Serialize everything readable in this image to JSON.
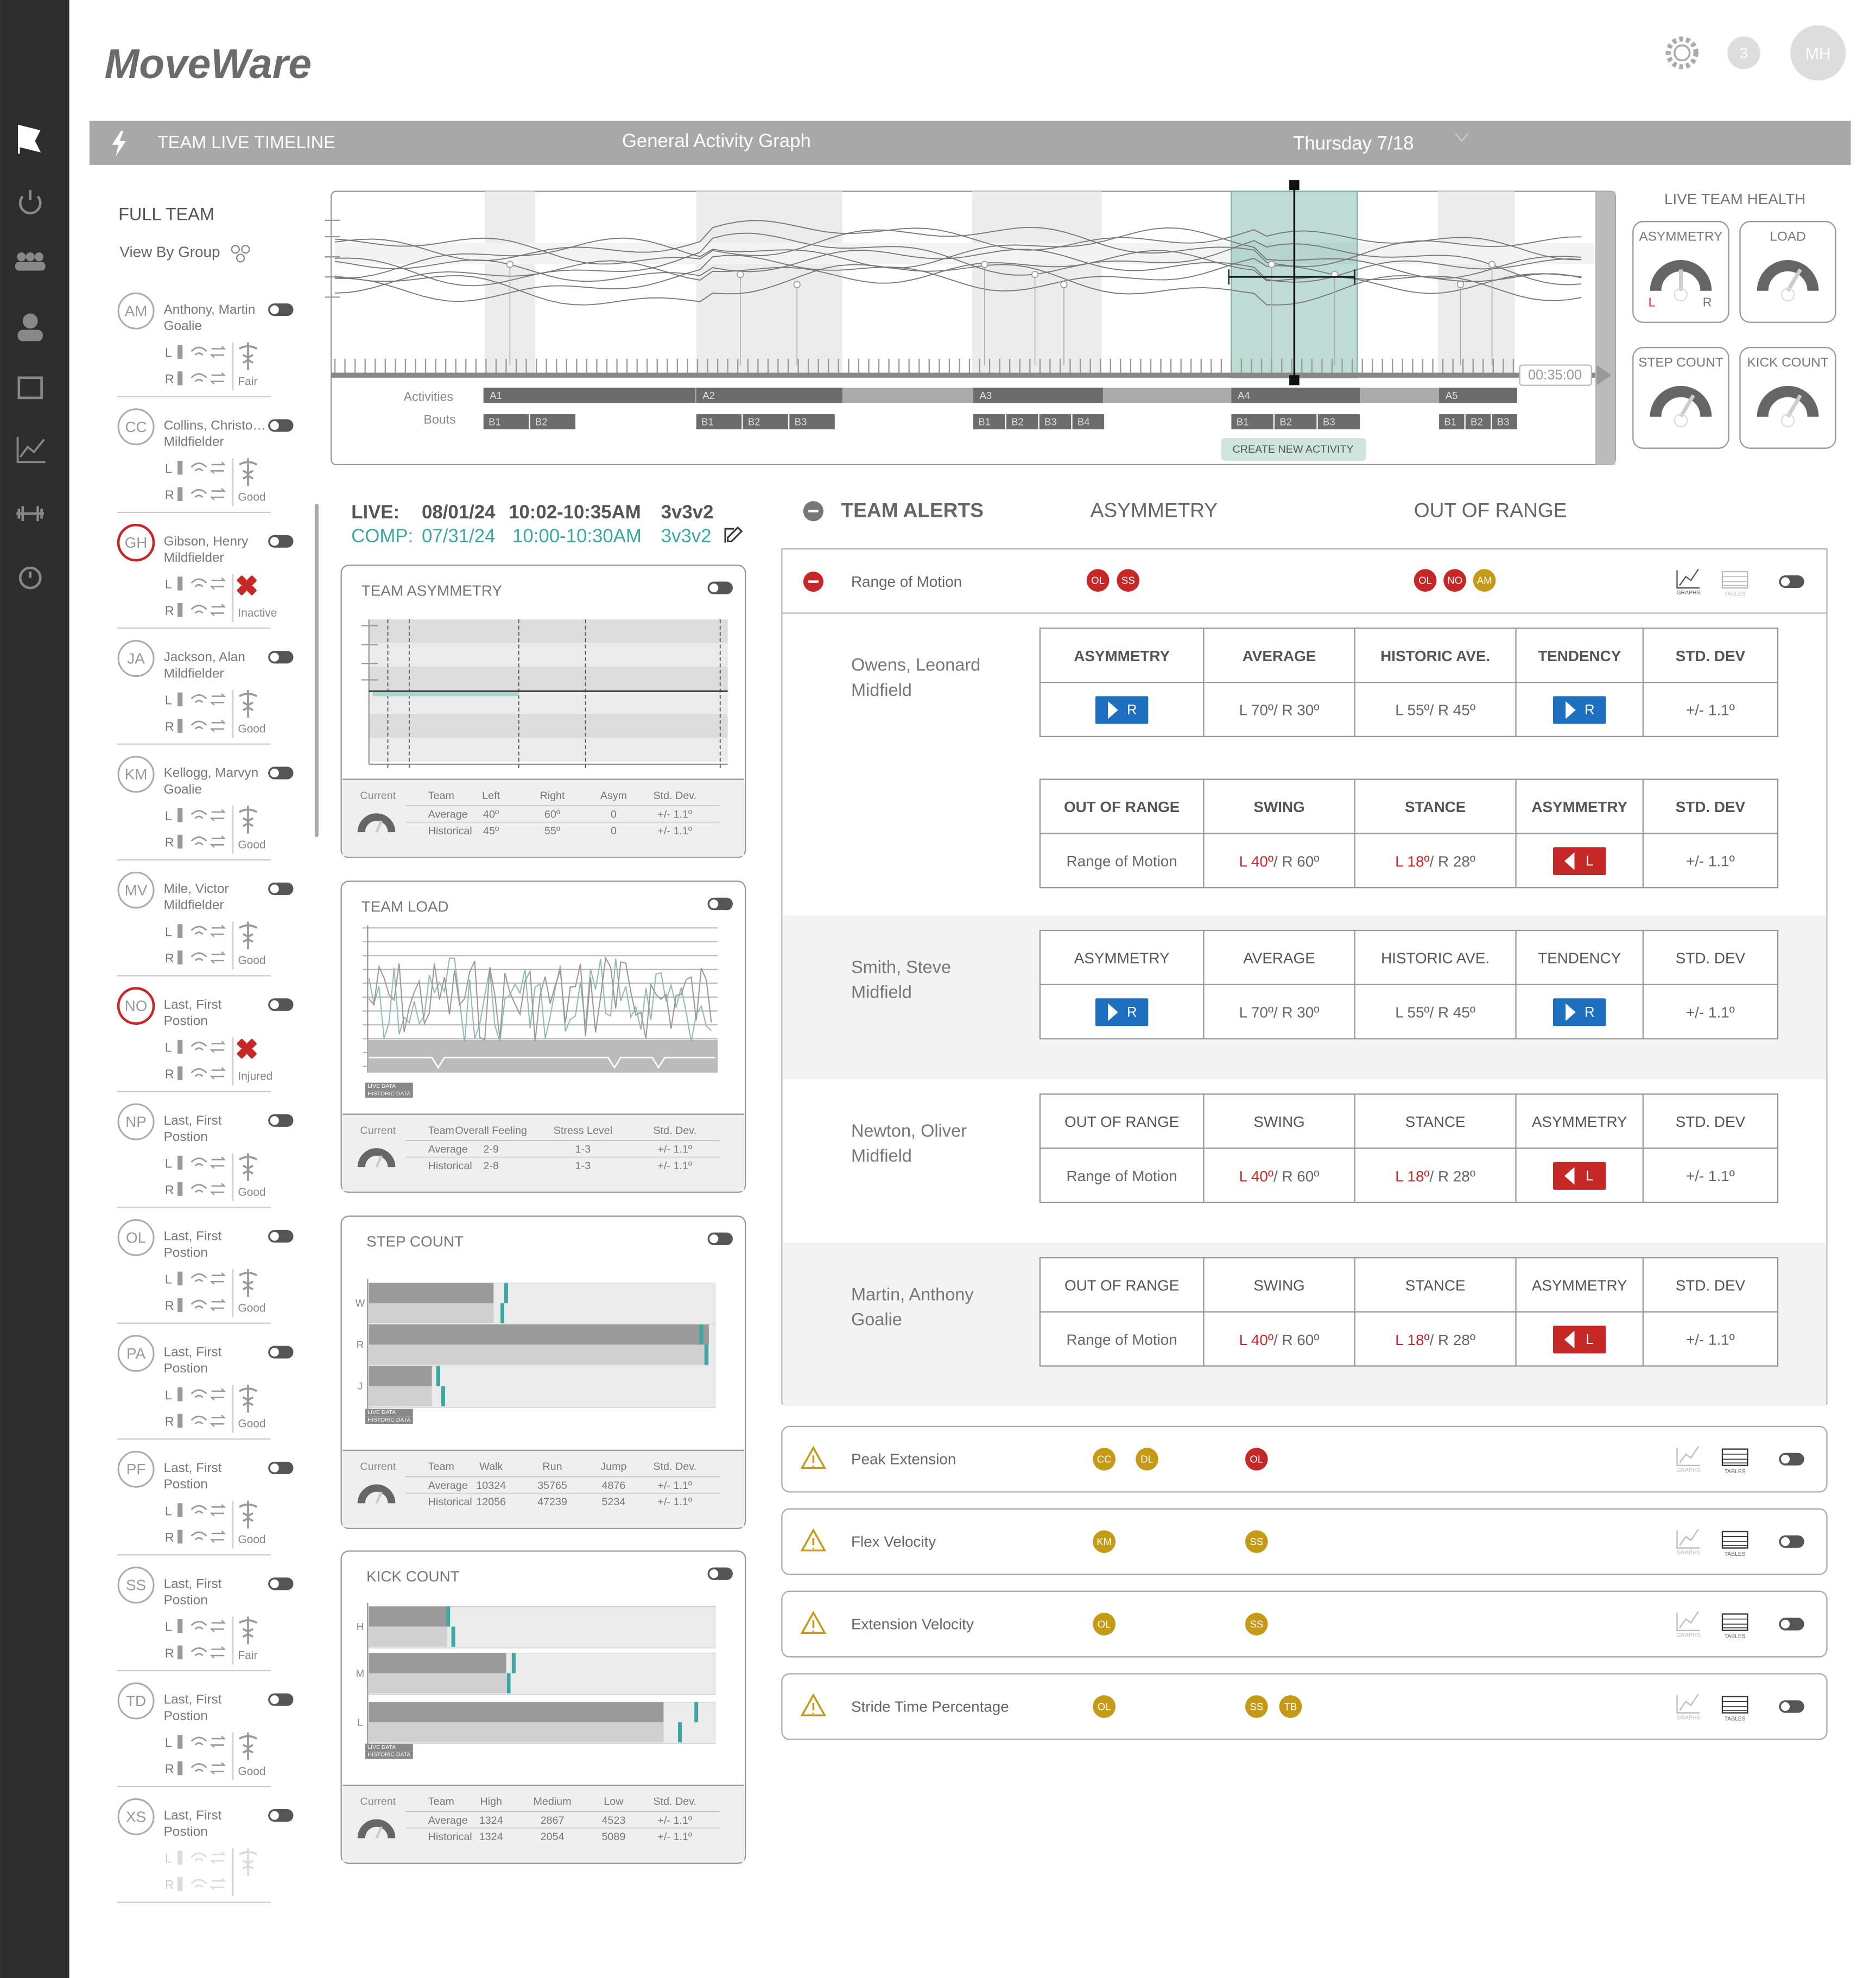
{
  "header": {
    "logo": "MoveWare",
    "notification_count": "3",
    "user_initials": "MH"
  },
  "timeline_bar": {
    "title": "TEAM LIVE TIMELINE",
    "graph": "General Activity Graph",
    "date": "Thursday 7/18"
  },
  "timeline": {
    "elapsed": "00:35:00",
    "activities_label": "Activities",
    "bouts_label": "Bouts",
    "create_button": "CREATE NEW ACTIVITY",
    "activities": [
      {
        "label": "A1",
        "bouts": [
          "B1",
          "B2"
        ]
      },
      {
        "label": "A2",
        "bouts": [
          "B1",
          "B2",
          "B3"
        ]
      },
      {
        "label": "A3",
        "bouts": [
          "B1",
          "B2",
          "B3",
          "B4"
        ]
      },
      {
        "label": "A4",
        "bouts": [
          "B1",
          "B2",
          "B3"
        ]
      },
      {
        "label": "A5",
        "bouts": [
          "B1",
          "B2",
          "B3"
        ]
      }
    ]
  },
  "team_health": {
    "title": "LIVE TEAM HEALTH",
    "left": "L",
    "right": "R",
    "gauges": [
      "ASYMMETRY",
      "LOAD",
      "STEP COUNT",
      "KICK COUNT"
    ]
  },
  "roster": {
    "title": "FULL TEAM",
    "view_by": "View By Group",
    "left": "L",
    "right": "R",
    "players": [
      {
        "initials": "AM",
        "name": "Anthony, Martin",
        "position": "Goalie",
        "status": "Fair"
      },
      {
        "initials": "CC",
        "name": "Collins, Christo…",
        "position": "Mildfielder",
        "status": "Good"
      },
      {
        "initials": "GH",
        "name": "Gibson, Henry",
        "position": "Mildfielder",
        "status": "Inactive",
        "flagged": true
      },
      {
        "initials": "JA",
        "name": "Jackson, Alan",
        "position": "Mildfielder",
        "status": "Good"
      },
      {
        "initials": "KM",
        "name": "Kellogg, Marvyn",
        "position": "Goalie",
        "status": "Good"
      },
      {
        "initials": "MV",
        "name": "Mile, Victor",
        "position": "Mildfielder",
        "status": "Good"
      },
      {
        "initials": "NO",
        "name": "Last, First",
        "position": "Postion",
        "status": "Injured",
        "flagged": true
      },
      {
        "initials": "NP",
        "name": "Last, First",
        "position": "Postion",
        "status": "Good"
      },
      {
        "initials": "OL",
        "name": "Last, First",
        "position": "Postion",
        "status": "Good"
      },
      {
        "initials": "PA",
        "name": "Last, First",
        "position": "Postion",
        "status": "Good"
      },
      {
        "initials": "PF",
        "name": "Last, First",
        "position": "Postion",
        "status": "Good"
      },
      {
        "initials": "SS",
        "name": "Last, First",
        "position": "Postion",
        "status": "Fair"
      },
      {
        "initials": "TD",
        "name": "Last, First",
        "position": "Postion",
        "status": "Good"
      },
      {
        "initials": "XS",
        "name": "Last, First",
        "position": "Postion"
      }
    ]
  },
  "session": {
    "live_label": "LIVE:",
    "live_date": "08/01/24",
    "live_time": "10:02-10:35AM",
    "live_format": "3v3v2",
    "comp_label": "COMP:",
    "comp_date": "07/31/24",
    "comp_time": "10:00-10:30AM",
    "comp_format": "3v3v2"
  },
  "cards": [
    {
      "title": "TEAM ASYMMETRY",
      "current": "Current",
      "columns": [
        "Team",
        "Left",
        "Right",
        "Asym",
        "Std. Dev."
      ],
      "rows": [
        [
          "Average",
          "40º",
          "60º",
          "0",
          "+/- 1.1º"
        ],
        [
          "Historical",
          "45º",
          "55º",
          "0",
          "+/- 1.1º"
        ]
      ]
    },
    {
      "title": "TEAM LOAD",
      "current": "Current",
      "legend": [
        "LIVE DATA",
        "HISTORIC DATA"
      ],
      "columns": [
        "Team",
        "Overall Feeling",
        "Stress Level",
        "Std. Dev."
      ],
      "rows": [
        [
          "Average",
          "2-9",
          "1-3",
          "+/- 1.1º"
        ],
        [
          "Historical",
          "2-8",
          "1-3",
          "+/- 1.1º"
        ]
      ]
    },
    {
      "title": "STEP COUNT",
      "current": "Current",
      "legend": [
        "LIVE DATA",
        "HISTORIC DATA"
      ],
      "axis": [
        "W",
        "R",
        "J"
      ],
      "columns": [
        "Team",
        "Walk",
        "Run",
        "Jump",
        "Std. Dev."
      ],
      "rows": [
        [
          "Average",
          "10324",
          "35765",
          "4876",
          "+/- 1.1º"
        ],
        [
          "Historical",
          "12056",
          "47239",
          "5234",
          "+/- 1.1º"
        ]
      ]
    },
    {
      "title": "KICK COUNT",
      "current": "Current",
      "legend": [
        "LIVE DATA",
        "HISTORIC DATA"
      ],
      "axis": [
        "H",
        "M",
        "L"
      ],
      "columns": [
        "Team",
        "High",
        "Medium",
        "Low",
        "Std. Dev."
      ],
      "rows": [
        [
          "Average",
          "1324",
          "2867",
          "4523",
          "+/- 1.1º"
        ],
        [
          "Historical",
          "1324",
          "2054",
          "5089",
          "+/- 1.1º"
        ]
      ]
    }
  ],
  "alerts": {
    "title": "TEAM ALERTS",
    "asymmetry": "ASYMMETRY",
    "out_of_range": "OUT OF RANGE",
    "graphs": "GRAPHS",
    "tables": "TABLES",
    "groups": [
      {
        "name": "Range of Motion",
        "expanded": true,
        "asymmetry": [
          {
            "label": "OL",
            "color": "#c62828"
          },
          {
            "label": "SS",
            "color": "#c62828"
          }
        ],
        "out_of_range": [
          {
            "label": "OL",
            "color": "#c62828"
          },
          {
            "label": "NO",
            "color": "#c62828"
          },
          {
            "label": "AM",
            "color": "#c49a16"
          }
        ],
        "players": [
          {
            "name": "Owens, Leonard",
            "position": "Midfield",
            "bold_headers": true,
            "tables": [
              {
                "headers": [
                  "ASYMMETRY",
                  "AVERAGE",
                  "HISTORIC AVE.",
                  "TENDENCY",
                  "STD. DEV"
                ],
                "cells": [
                  {
                    "button": "R",
                    "color": "#1e6fc0"
                  },
                  "L 70º/ R 30º",
                  "L 55º/ R 45º",
                  {
                    "button": "R",
                    "color": "#1e6fc0"
                  },
                  "+/- 1.1º"
                ]
              },
              {
                "headers": [
                  "OUT OF RANGE",
                  "SWING",
                  "STANCE",
                  "ASYMMETRY",
                  "STD. DEV"
                ],
                "cells": [
                  "Range of Motion",
                  {
                    "highlight": "L 40º",
                    "rest": "/ R 60º"
                  },
                  {
                    "highlight": "L 18º",
                    "rest": "/ R 28º"
                  },
                  {
                    "button": "L",
                    "color": "#c62828"
                  },
                  "+/- 1.1º"
                ]
              }
            ]
          },
          {
            "name": "Smith, Steve",
            "position": "Midfield",
            "tables": [
              {
                "headers": [
                  "ASYMMETRY",
                  "AVERAGE",
                  "HISTORIC AVE.",
                  "TENDENCY",
                  "STD. DEV"
                ],
                "cells": [
                  {
                    "button": "R",
                    "color": "#1e6fc0"
                  },
                  "L 70º/ R 30º",
                  "L 55º/ R 45º",
                  {
                    "button": "R",
                    "color": "#1e6fc0"
                  },
                  "+/- 1.1º"
                ]
              }
            ]
          },
          {
            "name": "Newton, Oliver",
            "position": "Midfield",
            "tables": [
              {
                "headers": [
                  "OUT OF RANGE",
                  "SWING",
                  "STANCE",
                  "ASYMMETRY",
                  "STD. DEV"
                ],
                "cells": [
                  "Range of Motion",
                  {
                    "highlight": "L 40º",
                    "rest": "/ R 60º"
                  },
                  {
                    "highlight": "L 18º",
                    "rest": "/ R 28º"
                  },
                  {
                    "button": "L",
                    "color": "#c62828"
                  },
                  "+/- 1.1º"
                ]
              }
            ]
          },
          {
            "name": "Martin, Anthony",
            "position": "Goalie",
            "tables": [
              {
                "headers": [
                  "OUT OF RANGE",
                  "SWING",
                  "STANCE",
                  "ASYMMETRY",
                  "STD. DEV"
                ],
                "cells": [
                  "Range of Motion",
                  {
                    "highlight": "L 40º",
                    "rest": "/ R 60º"
                  },
                  {
                    "highlight": "L 18º",
                    "rest": "/ R 28º"
                  },
                  {
                    "button": "L",
                    "color": "#c62828"
                  },
                  "+/- 1.1º"
                ]
              }
            ]
          }
        ]
      },
      {
        "name": "Peak Extension",
        "asymmetry": [
          {
            "label": "CC",
            "color": "#c49a16"
          },
          {
            "label": "DL",
            "color": "#c49a16"
          }
        ],
        "out_of_range": [
          {
            "label": "OL",
            "color": "#c62828"
          }
        ]
      },
      {
        "name": "Flex Velocity",
        "asymmetry": [
          {
            "label": "KM",
            "color": "#c49a16"
          }
        ],
        "out_of_range": [
          {
            "label": "SS",
            "color": "#c49a16"
          }
        ]
      },
      {
        "name": "Extension Velocity",
        "asymmetry": [
          {
            "label": "OL",
            "color": "#c49a16"
          }
        ],
        "out_of_range": [
          {
            "label": "SS",
            "color": "#c49a16"
          }
        ]
      },
      {
        "name": "Stride Time Percentage",
        "asymmetry": [
          {
            "label": "OL",
            "color": "#c49a16"
          }
        ],
        "out_of_range": [
          {
            "label": "SS",
            "color": "#c49a16"
          },
          {
            "label": "TB",
            "color": "#c49a16"
          }
        ]
      }
    ]
  }
}
